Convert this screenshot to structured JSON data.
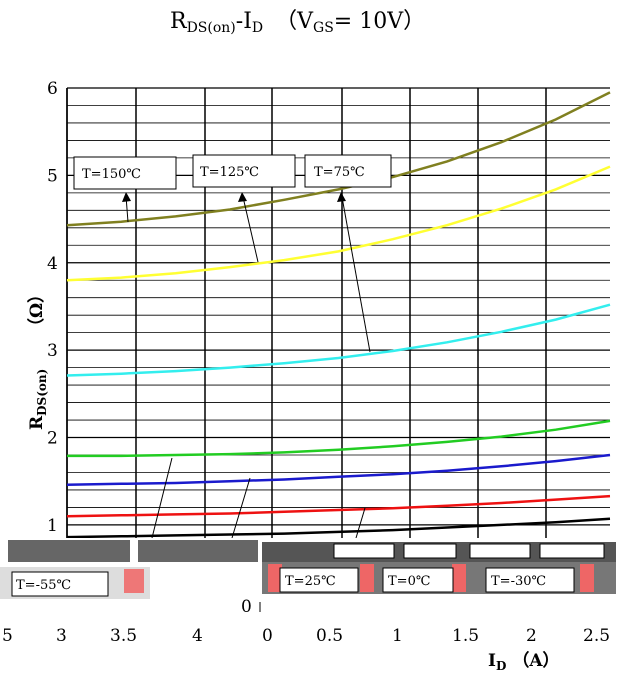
{
  "chart_data": {
    "type": "line",
    "title": {
      "main": "R",
      "main_sub": "DS(on)",
      "dash": "-I",
      "dash_sub": "D",
      "cond_open": "（V",
      "cond_sub": "GS",
      "cond_rest": "= 10V）"
    },
    "ylabel": {
      "symbol": "R",
      "symbol_sub": "DS(on)",
      "unit": "（Ω）"
    },
    "xlabel": {
      "symbol": "I",
      "symbol_sub": "D",
      "unit": "（A）"
    },
    "x": [
      0,
      0.25,
      0.5,
      0.75,
      1.0,
      1.25,
      1.5,
      1.75,
      2.0,
      2.25,
      2.5
    ],
    "xlim": [
      0,
      2.5
    ],
    "ylim": [
      0.85,
      6
    ],
    "yticks": [
      "1",
      "2",
      "3",
      "4",
      "5",
      "6"
    ],
    "xticks_right": [
      "0",
      "0.5",
      "1",
      "1.5",
      "2",
      "2.5"
    ],
    "xticks_left": [
      "5",
      "3",
      "3.5",
      "4"
    ],
    "bottom_zero": "0",
    "series": [
      {
        "name": "T=150℃",
        "color": "#808020",
        "values": [
          4.43,
          4.47,
          4.53,
          4.61,
          4.72,
          4.84,
          4.98,
          5.16,
          5.38,
          5.64,
          5.95
        ]
      },
      {
        "name": "T=125℃",
        "color": "#ffff33",
        "values": [
          3.8,
          3.83,
          3.88,
          3.95,
          4.03,
          4.13,
          4.27,
          4.43,
          4.62,
          4.84,
          5.1
        ]
      },
      {
        "name": "T=75℃",
        "color": "#33eeee",
        "values": [
          2.71,
          2.73,
          2.76,
          2.8,
          2.85,
          2.91,
          2.99,
          3.09,
          3.21,
          3.35,
          3.52
        ]
      },
      {
        "values": [
          1.79,
          1.79,
          1.8,
          1.81,
          1.83,
          1.86,
          1.9,
          1.95,
          2.01,
          2.09,
          2.19
        ],
        "color": "#22cc22"
      },
      {
        "values": [
          1.46,
          1.47,
          1.48,
          1.5,
          1.52,
          1.55,
          1.58,
          1.62,
          1.67,
          1.73,
          1.8
        ],
        "color": "#1a1acc"
      },
      {
        "values": [
          1.1,
          1.11,
          1.12,
          1.13,
          1.15,
          1.17,
          1.19,
          1.22,
          1.25,
          1.29,
          1.33
        ],
        "color": "#ee1111"
      },
      {
        "values": [
          0.86,
          0.87,
          0.88,
          0.89,
          0.9,
          0.92,
          0.94,
          0.97,
          1.0,
          1.03,
          1.07
        ],
        "color": "#000000"
      }
    ],
    "labels_top": [
      "T=150℃",
      "T=125℃",
      "T=75℃"
    ],
    "labels_bottom": [
      "T=-55℃",
      "T=25℃",
      "T=0℃",
      "T=-30℃"
    ]
  }
}
